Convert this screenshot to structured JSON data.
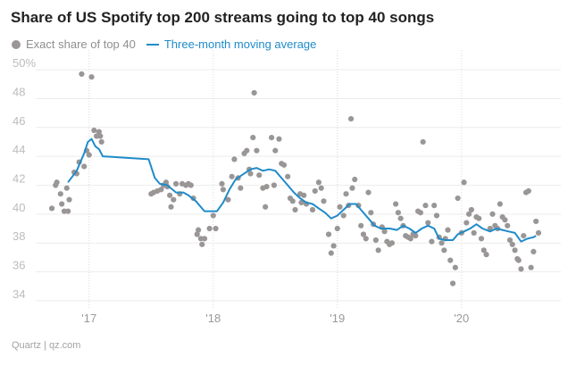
{
  "chart_data": {
    "type": "scatter",
    "title": "Share of US Spotify top 200 streams going to top 40 songs",
    "y_tick_labels": [
      "50%",
      "48",
      "46",
      "44",
      "42",
      "40",
      "38",
      "36",
      "34"
    ],
    "y_ticks": [
      50,
      48,
      46,
      44,
      42,
      40,
      38,
      36,
      34
    ],
    "ylim": [
      33.5,
      50.5
    ],
    "x_tick_labels": [
      "'17",
      "'18",
      "'19",
      "'20"
    ],
    "x_ticks": [
      2017.0,
      2018.0,
      2019.0,
      2020.0
    ],
    "xlim": [
      2016.57,
      2020.8
    ],
    "grid": true,
    "legend_placement": "top-left",
    "series": [
      {
        "name": "Exact share of top 40",
        "type": "scatter",
        "color": "#9a9696",
        "points": [
          [
            2016.7,
            40.4
          ],
          [
            2016.73,
            42.0
          ],
          [
            2016.74,
            42.2
          ],
          [
            2016.77,
            41.4
          ],
          [
            2016.78,
            40.7
          ],
          [
            2016.8,
            40.2
          ],
          [
            2016.82,
            41.8
          ],
          [
            2016.83,
            40.2
          ],
          [
            2016.84,
            41.0
          ],
          [
            2016.88,
            42.9
          ],
          [
            2016.9,
            42.8
          ],
          [
            2016.92,
            43.6
          ],
          [
            2016.94,
            49.7
          ],
          [
            2016.96,
            43.3
          ],
          [
            2016.98,
            44.4
          ],
          [
            2017.0,
            44.1
          ],
          [
            2017.02,
            49.5
          ],
          [
            2017.04,
            45.8
          ],
          [
            2017.06,
            45.4
          ],
          [
            2017.08,
            45.7
          ],
          [
            2017.09,
            45.4
          ],
          [
            2017.1,
            45.0
          ],
          [
            2017.5,
            41.4
          ],
          [
            2017.52,
            41.5
          ],
          [
            2017.55,
            41.6
          ],
          [
            2017.58,
            41.7
          ],
          [
            2017.6,
            42.0
          ],
          [
            2017.62,
            42.2
          ],
          [
            2017.63,
            41.9
          ],
          [
            2017.65,
            41.3
          ],
          [
            2017.66,
            40.5
          ],
          [
            2017.68,
            41.0
          ],
          [
            2017.7,
            42.1
          ],
          [
            2017.73,
            41.4
          ],
          [
            2017.75,
            42.1
          ],
          [
            2017.78,
            42.0
          ],
          [
            2017.8,
            42.1
          ],
          [
            2017.82,
            42.0
          ],
          [
            2017.84,
            41.1
          ],
          [
            2017.87,
            38.6
          ],
          [
            2017.88,
            38.9
          ],
          [
            2017.9,
            38.3
          ],
          [
            2017.91,
            37.9
          ],
          [
            2017.93,
            38.3
          ],
          [
            2017.97,
            39.0
          ],
          [
            2018.0,
            39.9
          ],
          [
            2018.02,
            39.0
          ],
          [
            2018.07,
            42.1
          ],
          [
            2018.08,
            41.7
          ],
          [
            2018.12,
            41.0
          ],
          [
            2018.15,
            42.6
          ],
          [
            2018.17,
            43.8
          ],
          [
            2018.2,
            42.5
          ],
          [
            2018.22,
            41.8
          ],
          [
            2018.25,
            44.2
          ],
          [
            2018.27,
            44.4
          ],
          [
            2018.29,
            43.1
          ],
          [
            2018.3,
            42.8
          ],
          [
            2018.32,
            45.3
          ],
          [
            2018.33,
            48.4
          ],
          [
            2018.35,
            44.4
          ],
          [
            2018.37,
            42.7
          ],
          [
            2018.4,
            41.8
          ],
          [
            2018.42,
            40.5
          ],
          [
            2018.43,
            41.9
          ],
          [
            2018.47,
            45.3
          ],
          [
            2018.49,
            42.0
          ],
          [
            2018.5,
            44.4
          ],
          [
            2018.53,
            45.2
          ],
          [
            2018.55,
            43.5
          ],
          [
            2018.57,
            43.4
          ],
          [
            2018.6,
            42.6
          ],
          [
            2018.62,
            41.1
          ],
          [
            2018.64,
            40.9
          ],
          [
            2018.66,
            40.3
          ],
          [
            2018.7,
            41.4
          ],
          [
            2018.71,
            40.8
          ],
          [
            2018.73,
            41.3
          ],
          [
            2018.75,
            40.7
          ],
          [
            2018.8,
            40.3
          ],
          [
            2018.82,
            41.6
          ],
          [
            2018.85,
            42.2
          ],
          [
            2018.87,
            41.8
          ],
          [
            2018.89,
            40.9
          ],
          [
            2018.93,
            38.6
          ],
          [
            2018.95,
            37.3
          ],
          [
            2018.97,
            37.8
          ],
          [
            2019.0,
            39.0
          ],
          [
            2019.02,
            40.5
          ],
          [
            2019.05,
            39.9
          ],
          [
            2019.07,
            41.4
          ],
          [
            2019.09,
            40.6
          ],
          [
            2019.11,
            46.6
          ],
          [
            2019.12,
            41.8
          ],
          [
            2019.14,
            42.4
          ],
          [
            2019.17,
            40.6
          ],
          [
            2019.19,
            39.2
          ],
          [
            2019.21,
            38.6
          ],
          [
            2019.23,
            38.3
          ],
          [
            2019.25,
            41.5
          ],
          [
            2019.27,
            40.1
          ],
          [
            2019.29,
            39.3
          ],
          [
            2019.31,
            38.2
          ],
          [
            2019.33,
            37.5
          ],
          [
            2019.36,
            39.1
          ],
          [
            2019.38,
            38.8
          ],
          [
            2019.4,
            38.1
          ],
          [
            2019.42,
            37.9
          ],
          [
            2019.44,
            38.0
          ],
          [
            2019.47,
            40.7
          ],
          [
            2019.49,
            40.1
          ],
          [
            2019.51,
            39.7
          ],
          [
            2019.53,
            39.2
          ],
          [
            2019.55,
            38.5
          ],
          [
            2019.57,
            38.4
          ],
          [
            2019.59,
            38.3
          ],
          [
            2019.61,
            38.6
          ],
          [
            2019.63,
            38.5
          ],
          [
            2019.65,
            40.2
          ],
          [
            2019.67,
            40.1
          ],
          [
            2019.69,
            45.0
          ],
          [
            2019.71,
            40.6
          ],
          [
            2019.73,
            39.4
          ],
          [
            2019.76,
            38.1
          ],
          [
            2019.78,
            40.6
          ],
          [
            2019.8,
            39.9
          ],
          [
            2019.82,
            38.4
          ],
          [
            2019.84,
            38.0
          ],
          [
            2019.86,
            37.5
          ],
          [
            2019.87,
            38.3
          ],
          [
            2019.89,
            38.9
          ],
          [
            2019.91,
            36.8
          ],
          [
            2019.93,
            35.2
          ],
          [
            2019.95,
            36.3
          ],
          [
            2019.97,
            41.1
          ],
          [
            2020.0,
            38.7
          ],
          [
            2020.02,
            42.2
          ],
          [
            2020.04,
            39.4
          ],
          [
            2020.06,
            40.0
          ],
          [
            2020.08,
            40.3
          ],
          [
            2020.1,
            38.7
          ],
          [
            2020.12,
            39.8
          ],
          [
            2020.14,
            39.7
          ],
          [
            2020.16,
            38.3
          ],
          [
            2020.18,
            37.5
          ],
          [
            2020.2,
            37.2
          ],
          [
            2020.23,
            39.0
          ],
          [
            2020.25,
            40.0
          ],
          [
            2020.27,
            39.2
          ],
          [
            2020.29,
            39.0
          ],
          [
            2020.31,
            40.7
          ],
          [
            2020.33,
            39.8
          ],
          [
            2020.35,
            39.6
          ],
          [
            2020.37,
            39.2
          ],
          [
            2020.39,
            38.2
          ],
          [
            2020.41,
            37.9
          ],
          [
            2020.43,
            37.5
          ],
          [
            2020.45,
            36.9
          ],
          [
            2020.46,
            36.8
          ],
          [
            2020.48,
            36.2
          ],
          [
            2020.5,
            38.5
          ],
          [
            2020.52,
            41.5
          ],
          [
            2020.54,
            41.6
          ],
          [
            2020.56,
            36.3
          ],
          [
            2020.58,
            37.4
          ],
          [
            2020.6,
            39.5
          ],
          [
            2020.62,
            38.7
          ]
        ]
      },
      {
        "name": "Three-month moving average",
        "type": "line",
        "color": "#1f8bc9",
        "points": [
          [
            2016.83,
            42.2
          ],
          [
            2016.9,
            43.0
          ],
          [
            2016.96,
            44.2
          ],
          [
            2016.99,
            45.0
          ],
          [
            2017.02,
            45.2
          ],
          [
            2017.05,
            44.7
          ],
          [
            2017.08,
            44.5
          ],
          [
            2017.11,
            44.0
          ],
          [
            2017.48,
            43.8
          ],
          [
            2017.53,
            42.5
          ],
          [
            2017.57,
            42.1
          ],
          [
            2017.63,
            42.0
          ],
          [
            2017.7,
            41.5
          ],
          [
            2017.76,
            41.5
          ],
          [
            2017.8,
            41.3
          ],
          [
            2017.86,
            40.9
          ],
          [
            2017.93,
            40.2
          ],
          [
            2018.03,
            40.2
          ],
          [
            2018.08,
            40.8
          ],
          [
            2018.13,
            41.7
          ],
          [
            2018.18,
            42.4
          ],
          [
            2018.23,
            42.7
          ],
          [
            2018.3,
            43.1
          ],
          [
            2018.35,
            43.2
          ],
          [
            2018.4,
            43.0
          ],
          [
            2018.45,
            43.1
          ],
          [
            2018.5,
            43.0
          ],
          [
            2018.55,
            42.5
          ],
          [
            2018.6,
            42.0
          ],
          [
            2018.65,
            41.5
          ],
          [
            2018.7,
            41.1
          ],
          [
            2018.75,
            40.8
          ],
          [
            2018.8,
            40.7
          ],
          [
            2018.85,
            40.4
          ],
          [
            2018.9,
            40.1
          ],
          [
            2018.95,
            39.7
          ],
          [
            2019.0,
            39.9
          ],
          [
            2019.05,
            40.3
          ],
          [
            2019.1,
            40.7
          ],
          [
            2019.15,
            40.7
          ],
          [
            2019.2,
            40.2
          ],
          [
            2019.25,
            39.7
          ],
          [
            2019.3,
            39.2
          ],
          [
            2019.35,
            39.0
          ],
          [
            2019.42,
            39.0
          ],
          [
            2019.48,
            38.9
          ],
          [
            2019.53,
            39.2
          ],
          [
            2019.58,
            39.0
          ],
          [
            2019.63,
            38.7
          ],
          [
            2019.68,
            39.0
          ],
          [
            2019.73,
            39.2
          ],
          [
            2019.78,
            39.0
          ],
          [
            2019.82,
            38.3
          ],
          [
            2019.87,
            38.2
          ],
          [
            2019.93,
            38.2
          ],
          [
            2019.97,
            38.6
          ],
          [
            2020.02,
            38.8
          ],
          [
            2020.07,
            39.0
          ],
          [
            2020.12,
            39.3
          ],
          [
            2020.17,
            39.0
          ],
          [
            2020.23,
            38.8
          ],
          [
            2020.28,
            39.0
          ],
          [
            2020.33,
            38.9
          ],
          [
            2020.38,
            38.8
          ],
          [
            2020.43,
            38.7
          ],
          [
            2020.48,
            38.1
          ],
          [
            2020.53,
            38.3
          ],
          [
            2020.58,
            38.4
          ],
          [
            2020.6,
            38.5
          ]
        ]
      }
    ]
  },
  "legend": {
    "scatter_label": "Exact share of top 40",
    "line_label": "Three-month moving average"
  },
  "source": "Quartz | qz.com"
}
